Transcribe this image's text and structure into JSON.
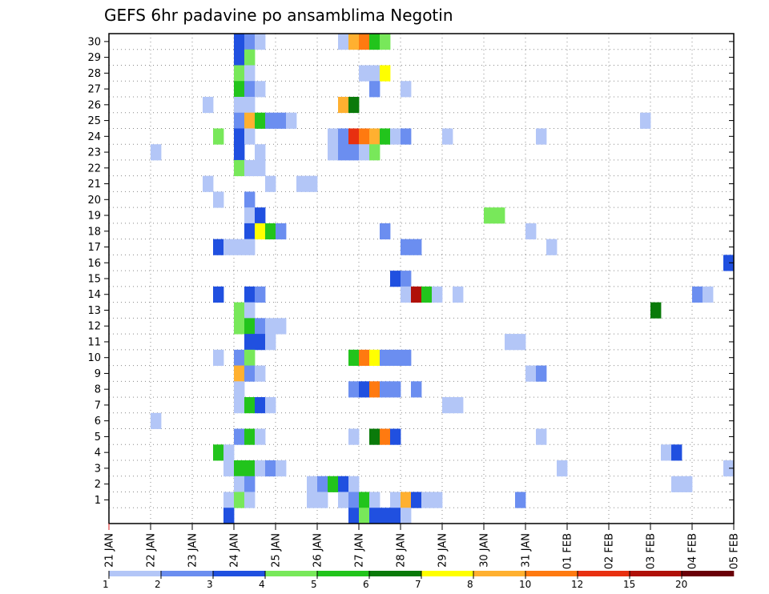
{
  "chart_data": {
    "type": "heatmap",
    "title": "GEFS 6hr padavine po ansamblima Negotin",
    "xlabel": "",
    "ylabel": "",
    "x_tick_labels": [
      "21 JAN",
      "22 JAN",
      "23 JAN",
      "24 JAN",
      "25 JAN",
      "26 JAN",
      "27 JAN",
      "28 JAN",
      "29 JAN",
      "30 JAN",
      "31 JAN",
      "01 FEB",
      "02 FEB",
      "03 FEB",
      "04 FEB",
      "05 FEB"
    ],
    "y_tick_labels": [
      "1",
      "2",
      "3",
      "4",
      "5",
      "6",
      "7",
      "8",
      "9",
      "10",
      "11",
      "12",
      "13",
      "14",
      "15",
      "16",
      "17",
      "18",
      "19",
      "20",
      "21",
      "22",
      "23",
      "24",
      "25",
      "26",
      "27",
      "28",
      "29",
      "30"
    ],
    "x_range_steps": [
      0,
      60
    ],
    "steps_per_day": 4,
    "grid": true,
    "legend_position": "bottom",
    "legend_thresholds": [
      "1",
      "2",
      "3",
      "4",
      "5",
      "6",
      "7",
      "8",
      "10",
      "12",
      "15",
      "20"
    ],
    "legend_colors": [
      "#b3c6f7",
      "#6b8ef0",
      "#2050e0",
      "#78e85a",
      "#22c41c",
      "#0a7a0a",
      "#ffff00",
      "#ffb030",
      "#ff7a10",
      "#e83010",
      "#b01008",
      "#6a0008"
    ],
    "cells": [
      [
        30,
        12,
        3
      ],
      [
        30,
        13,
        2
      ],
      [
        30,
        14,
        1
      ],
      [
        30,
        22,
        1
      ],
      [
        30,
        23,
        8
      ],
      [
        30,
        24,
        9
      ],
      [
        30,
        25,
        5
      ],
      [
        30,
        26,
        4
      ],
      [
        29,
        12,
        3
      ],
      [
        29,
        13,
        4
      ],
      [
        28,
        12,
        4
      ],
      [
        28,
        13,
        1
      ],
      [
        28,
        24,
        1
      ],
      [
        28,
        25,
        1
      ],
      [
        28,
        26,
        7
      ],
      [
        27,
        12,
        5
      ],
      [
        27,
        13,
        2
      ],
      [
        27,
        14,
        1
      ],
      [
        27,
        25,
        2
      ],
      [
        27,
        28,
        1
      ],
      [
        26,
        9,
        1
      ],
      [
        26,
        12,
        1
      ],
      [
        26,
        13,
        1
      ],
      [
        26,
        22,
        8
      ],
      [
        26,
        23,
        6
      ],
      [
        25,
        12,
        2
      ],
      [
        25,
        13,
        8
      ],
      [
        25,
        14,
        5
      ],
      [
        25,
        15,
        2
      ],
      [
        25,
        16,
        2
      ],
      [
        25,
        17,
        1
      ],
      [
        25,
        51,
        1
      ],
      [
        24,
        10,
        4
      ],
      [
        24,
        12,
        3
      ],
      [
        24,
        13,
        1
      ],
      [
        24,
        21,
        1
      ],
      [
        24,
        22,
        2
      ],
      [
        24,
        23,
        10
      ],
      [
        24,
        24,
        9
      ],
      [
        24,
        25,
        8
      ],
      [
        24,
        26,
        5
      ],
      [
        24,
        27,
        1
      ],
      [
        24,
        28,
        2
      ],
      [
        24,
        32,
        1
      ],
      [
        24,
        41,
        1
      ],
      [
        23,
        4,
        1
      ],
      [
        23,
        12,
        3
      ],
      [
        23,
        14,
        1
      ],
      [
        23,
        21,
        1
      ],
      [
        23,
        22,
        2
      ],
      [
        23,
        23,
        2
      ],
      [
        23,
        24,
        1
      ],
      [
        23,
        25,
        4
      ],
      [
        22,
        12,
        4
      ],
      [
        22,
        13,
        1
      ],
      [
        22,
        14,
        1
      ],
      [
        21,
        9,
        1
      ],
      [
        21,
        15,
        1
      ],
      [
        21,
        18,
        1
      ],
      [
        21,
        19,
        1
      ],
      [
        20,
        10,
        1
      ],
      [
        20,
        13,
        2
      ],
      [
        19,
        13,
        1
      ],
      [
        19,
        14,
        3
      ],
      [
        19,
        36,
        4
      ],
      [
        19,
        37,
        4
      ],
      [
        18,
        13,
        3
      ],
      [
        18,
        14,
        7
      ],
      [
        18,
        15,
        5
      ],
      [
        18,
        16,
        2
      ],
      [
        18,
        26,
        2
      ],
      [
        18,
        40,
        1
      ],
      [
        17,
        10,
        3
      ],
      [
        17,
        11,
        1
      ],
      [
        17,
        12,
        1
      ],
      [
        17,
        13,
        1
      ],
      [
        17,
        28,
        2
      ],
      [
        17,
        29,
        2
      ],
      [
        17,
        42,
        1
      ],
      [
        16,
        59,
        3
      ],
      [
        15,
        27,
        3
      ],
      [
        15,
        28,
        2
      ],
      [
        14,
        10,
        3
      ],
      [
        14,
        13,
        3
      ],
      [
        14,
        14,
        2
      ],
      [
        14,
        28,
        1
      ],
      [
        14,
        29,
        11
      ],
      [
        14,
        30,
        5
      ],
      [
        14,
        31,
        1
      ],
      [
        14,
        33,
        1
      ],
      [
        14,
        56,
        2
      ],
      [
        14,
        57,
        1
      ],
      [
        13,
        12,
        4
      ],
      [
        13,
        13,
        1
      ],
      [
        13,
        52,
        6
      ],
      [
        12,
        12,
        4
      ],
      [
        12,
        13,
        5
      ],
      [
        12,
        14,
        2
      ],
      [
        12,
        15,
        1
      ],
      [
        12,
        16,
        1
      ],
      [
        11,
        13,
        3
      ],
      [
        11,
        14,
        3
      ],
      [
        11,
        15,
        1
      ],
      [
        11,
        38,
        1
      ],
      [
        11,
        39,
        1
      ],
      [
        10,
        10,
        1
      ],
      [
        10,
        12,
        2
      ],
      [
        10,
        13,
        4
      ],
      [
        10,
        23,
        5
      ],
      [
        10,
        24,
        9
      ],
      [
        10,
        25,
        7
      ],
      [
        10,
        26,
        2
      ],
      [
        10,
        27,
        2
      ],
      [
        10,
        28,
        2
      ],
      [
        9,
        12,
        8
      ],
      [
        9,
        13,
        2
      ],
      [
        9,
        14,
        1
      ],
      [
        9,
        40,
        1
      ],
      [
        9,
        41,
        2
      ],
      [
        8,
        12,
        1
      ],
      [
        8,
        23,
        2
      ],
      [
        8,
        24,
        3
      ],
      [
        8,
        25,
        9
      ],
      [
        8,
        26,
        2
      ],
      [
        8,
        27,
        2
      ],
      [
        8,
        29,
        2
      ],
      [
        7,
        12,
        1
      ],
      [
        7,
        13,
        5
      ],
      [
        7,
        14,
        3
      ],
      [
        7,
        15,
        1
      ],
      [
        7,
        32,
        1
      ],
      [
        7,
        33,
        1
      ],
      [
        6,
        4,
        1
      ],
      [
        5,
        12,
        2
      ],
      [
        5,
        13,
        5
      ],
      [
        5,
        14,
        1
      ],
      [
        5,
        23,
        1
      ],
      [
        5,
        25,
        6
      ],
      [
        5,
        26,
        9
      ],
      [
        5,
        27,
        3
      ],
      [
        5,
        41,
        1
      ],
      [
        4,
        10,
        5
      ],
      [
        4,
        11,
        1
      ],
      [
        4,
        53,
        1
      ],
      [
        4,
        54,
        3
      ],
      [
        3,
        11,
        1
      ],
      [
        3,
        12,
        5
      ],
      [
        3,
        13,
        5
      ],
      [
        3,
        14,
        1
      ],
      [
        3,
        15,
        2
      ],
      [
        3,
        16,
        1
      ],
      [
        3,
        43,
        1
      ],
      [
        3,
        59,
        1
      ],
      [
        2,
        12,
        1
      ],
      [
        2,
        13,
        2
      ],
      [
        2,
        19,
        1
      ],
      [
        2,
        20,
        2
      ],
      [
        2,
        21,
        5
      ],
      [
        2,
        22,
        3
      ],
      [
        2,
        23,
        1
      ],
      [
        2,
        54,
        1
      ],
      [
        2,
        55,
        1
      ],
      [
        1,
        11,
        1
      ],
      [
        1,
        12,
        4
      ],
      [
        1,
        13,
        1
      ],
      [
        1,
        19,
        1
      ],
      [
        1,
        20,
        1
      ],
      [
        1,
        22,
        1
      ],
      [
        1,
        23,
        2
      ],
      [
        1,
        24,
        5
      ],
      [
        1,
        25,
        1
      ],
      [
        1,
        27,
        1
      ],
      [
        1,
        28,
        8
      ],
      [
        1,
        29,
        3
      ],
      [
        1,
        30,
        1
      ],
      [
        1,
        31,
        1
      ],
      [
        1,
        39,
        2
      ],
      [
        0,
        11,
        3
      ],
      [
        0,
        23,
        3
      ],
      [
        0,
        24,
        4
      ],
      [
        0,
        25,
        3
      ],
      [
        0,
        26,
        3
      ],
      [
        0,
        27,
        3
      ],
      [
        0,
        28,
        1
      ]
    ]
  }
}
